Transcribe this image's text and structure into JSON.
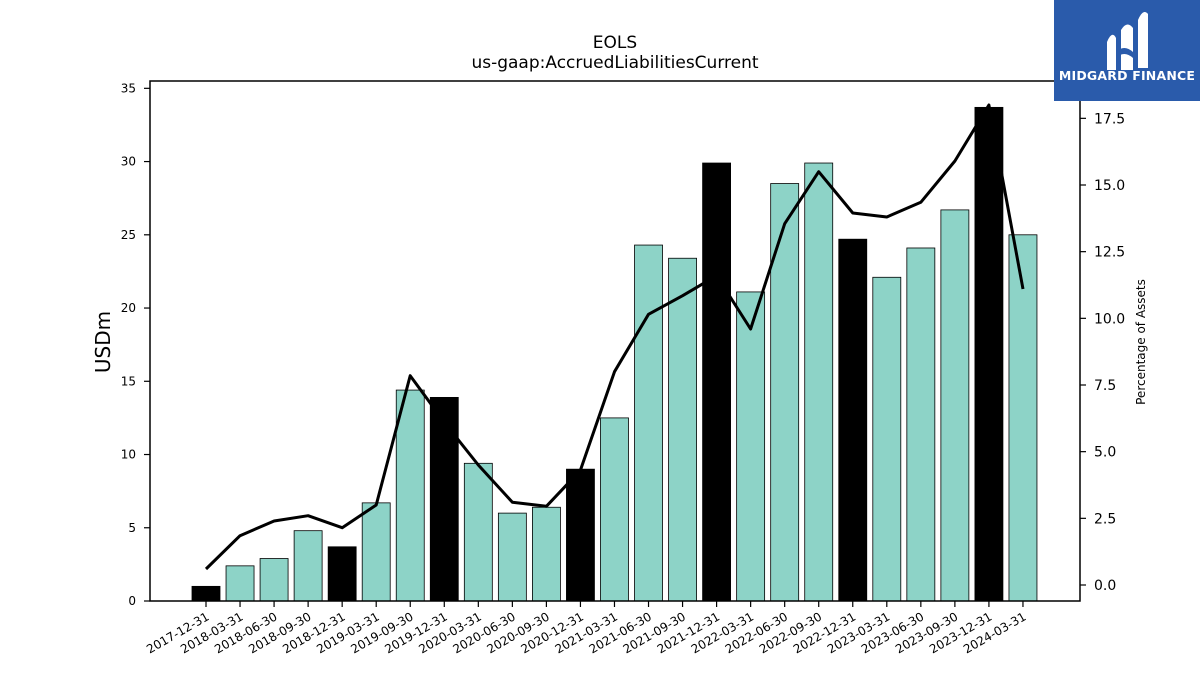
{
  "chart_data": {
    "type": "bar",
    "title": "EOLS",
    "subtitle": "us-gaap:AccruedLiabilitiesCurrent",
    "ylabel": "USDm",
    "y2label": "Percentage of Assets",
    "ylim": [
      0,
      35.5
    ],
    "y2lim": [
      -0.6,
      18.9
    ],
    "yticks": [
      "0",
      "5",
      "10",
      "15",
      "20",
      "25",
      "30",
      "35"
    ],
    "y2ticks": [
      "0.0",
      "2.5",
      "5.0",
      "7.5",
      "10.0",
      "12.5",
      "15.0",
      "17.5"
    ],
    "categories": [
      "2017-12-31",
      "2018-03-31",
      "2018-06-30",
      "2018-09-30",
      "2018-12-31",
      "2019-03-31",
      "2019-09-30",
      "2019-12-31",
      "2020-03-31",
      "2020-06-30",
      "2020-09-30",
      "2020-12-31",
      "2021-03-31",
      "2021-06-30",
      "2021-09-30",
      "2021-12-31",
      "2022-03-31",
      "2022-06-30",
      "2022-09-30",
      "2022-12-31",
      "2023-03-31",
      "2023-06-30",
      "2023-09-30",
      "2023-12-31",
      "2024-03-31"
    ],
    "series": [
      {
        "kind": "bar",
        "values": [
          1.0,
          2.4,
          2.9,
          4.8,
          3.7,
          6.7,
          14.4,
          13.9,
          9.4,
          6.0,
          6.4,
          9.0,
          12.5,
          24.3,
          23.4,
          29.9,
          21.1,
          28.5,
          29.9,
          24.7,
          22.1,
          24.1,
          26.7,
          33.7,
          25.0
        ],
        "annual": [
          true,
          false,
          false,
          false,
          true,
          false,
          false,
          true,
          false,
          false,
          false,
          true,
          false,
          false,
          false,
          true,
          false,
          false,
          false,
          true,
          false,
          false,
          false,
          true,
          false
        ]
      },
      {
        "kind": "line",
        "axis": "right",
        "values": [
          0.6,
          1.85,
          2.4,
          2.6,
          2.15,
          3.0,
          7.85,
          6.1,
          4.5,
          3.1,
          2.95,
          4.3,
          8.0,
          10.15,
          10.85,
          11.6,
          9.6,
          13.55,
          15.5,
          13.95,
          13.8,
          14.35,
          15.9,
          18.0,
          11.1
        ]
      }
    ],
    "colors": {
      "quarter_bar": "#8dd3c7",
      "annual_bar": "#000000",
      "line": "#000000"
    }
  },
  "logo": {
    "text": "MIDGARD FINANCE",
    "background": "#2a5bab"
  }
}
